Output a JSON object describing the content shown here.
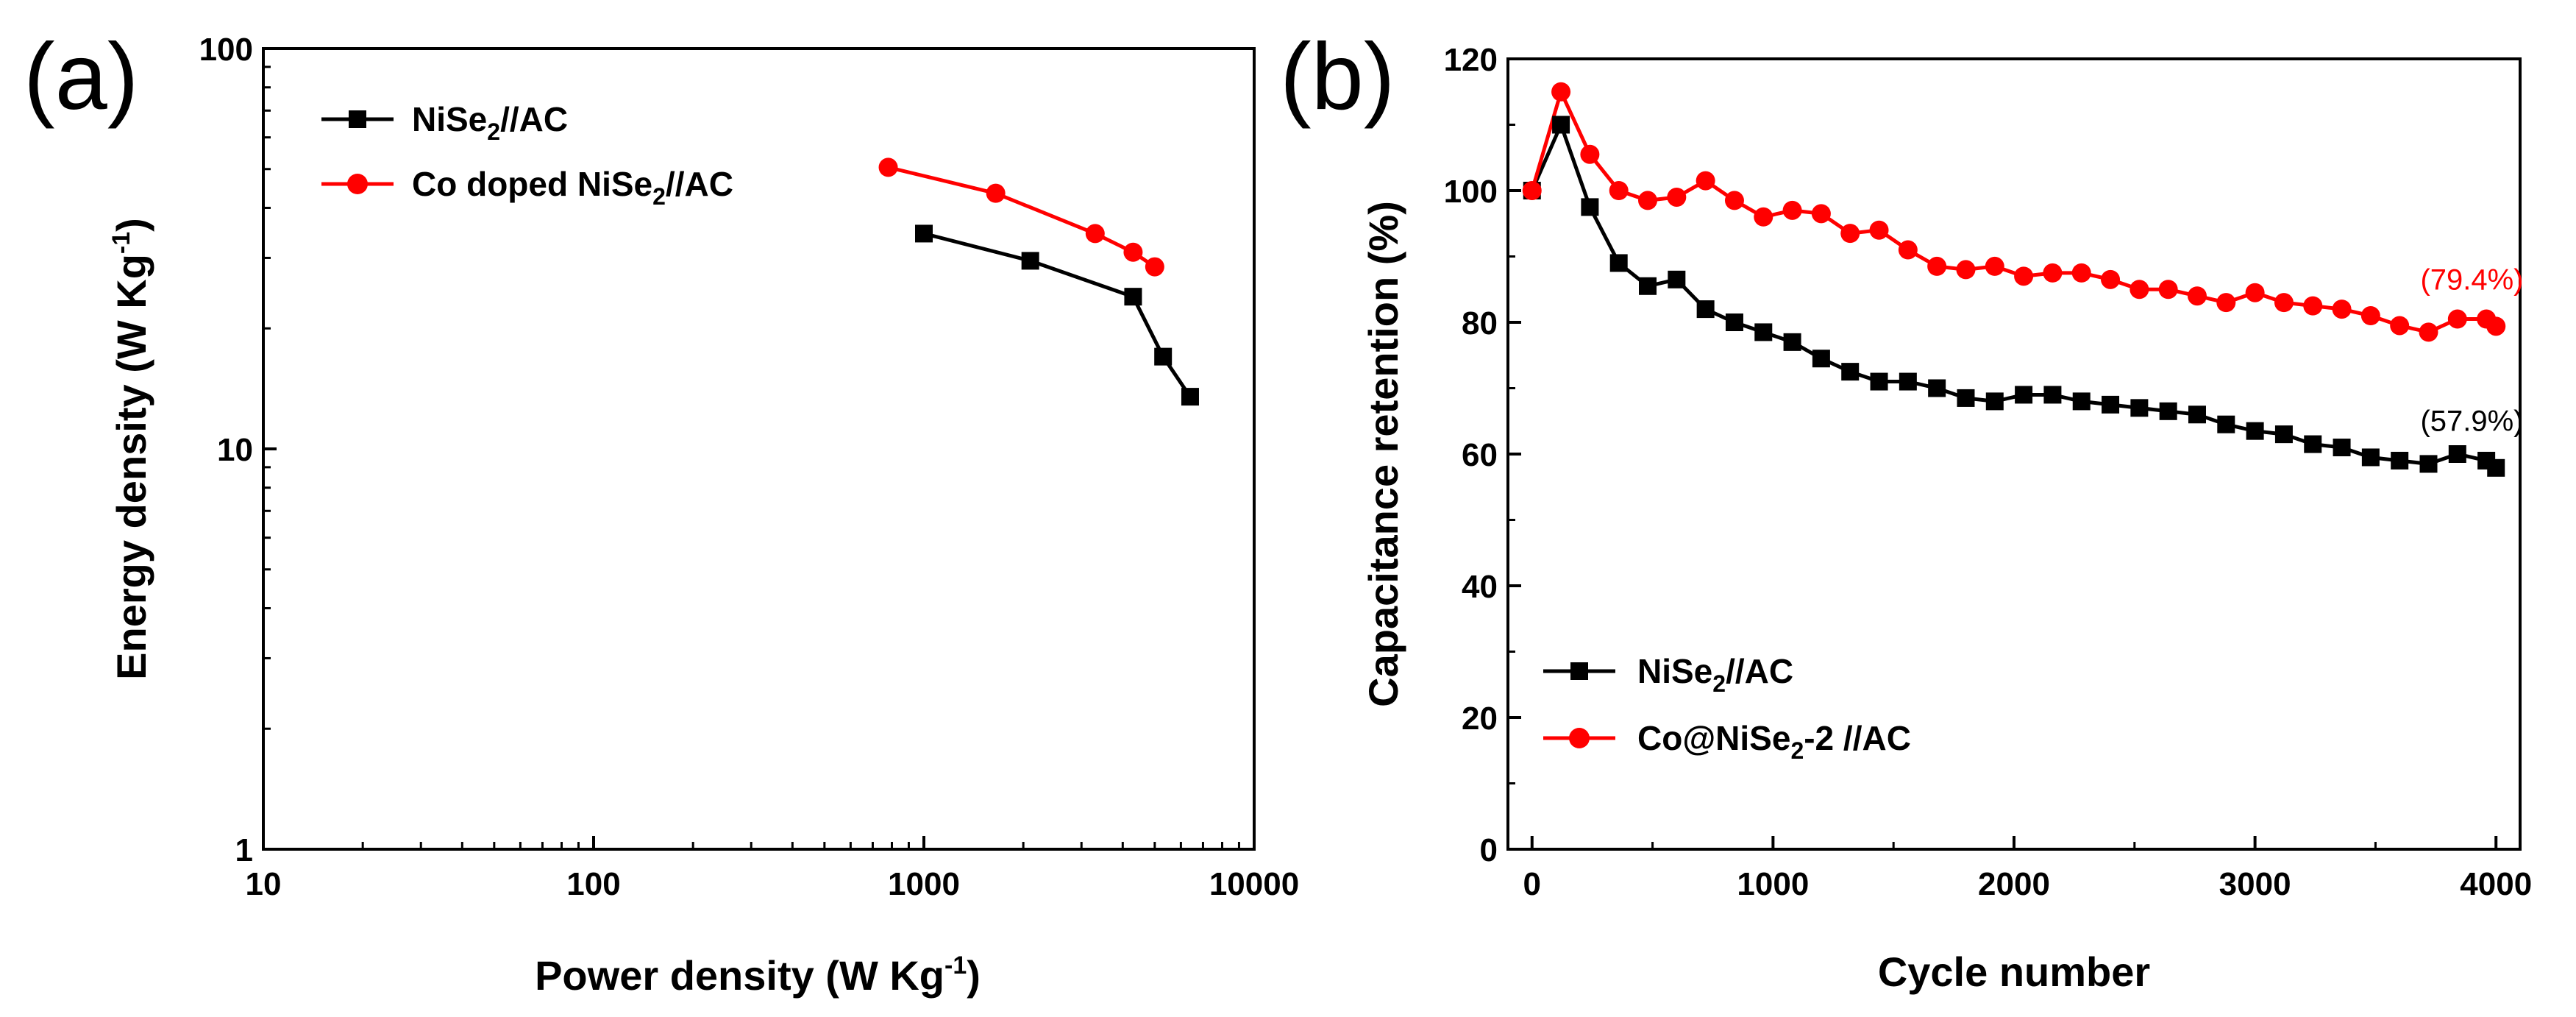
{
  "chart_data": [
    {
      "panel": "(a)",
      "type": "line",
      "xscale": "log",
      "yscale": "log",
      "xlim": [
        10,
        10000
      ],
      "ylim": [
        1,
        100
      ],
      "xticks": [
        "10",
        "100",
        "1000",
        "10000"
      ],
      "yticks": [
        "1",
        "10",
        "100"
      ],
      "xlabel": "Power density (W Kg",
      "xlabel_sup": "-1",
      "xlabel_end": ")",
      "ylabel": "Energy density (W Kg",
      "ylabel_sup": "-1",
      "ylabel_end": ")",
      "legend_position": "top-left",
      "series": [
        {
          "name": "NiSe",
          "name_sub": "2",
          "name_end": "//AC",
          "color": "#000000",
          "marker": "square",
          "x": [
            1000,
            2100,
            4300,
            5300,
            6400
          ],
          "y": [
            34.5,
            29.5,
            24.0,
            17.0,
            13.5
          ]
        },
        {
          "name": "Co doped NiSe",
          "name_sub": "2",
          "name_end": "//AC",
          "color": "#ff0000",
          "marker": "circle",
          "x": [
            780,
            1650,
            3300,
            4300,
            5000
          ],
          "y": [
            50.5,
            43.5,
            34.5,
            31.0,
            28.5
          ]
        }
      ]
    },
    {
      "panel": "(b)",
      "type": "line",
      "xlim": [
        -100,
        4100
      ],
      "ylim": [
        0,
        120
      ],
      "xticks": [
        0,
        1000,
        2000,
        3000,
        4000
      ],
      "yticks": [
        0,
        20,
        40,
        60,
        80,
        100,
        120
      ],
      "xlabel": "Cycle number",
      "ylabel": "Capacitance retention (%)",
      "legend_position": "bottom-left",
      "annotations": [
        {
          "text": "(79.4%)",
          "x": 3900,
          "y": 85,
          "color": "#ff0000"
        },
        {
          "text": "(57.9%)",
          "x": 3900,
          "y": 63.5,
          "color": "#000000"
        }
      ],
      "series": [
        {
          "name": "NiSe",
          "name_sub": "2",
          "name_end": "//AC",
          "color": "#000000",
          "marker": "square",
          "x": [
            0,
            120,
            240,
            360,
            480,
            600,
            720,
            840,
            960,
            1080,
            1200,
            1320,
            1440,
            1560,
            1680,
            1800,
            1920,
            2040,
            2160,
            2280,
            2400,
            2520,
            2640,
            2760,
            2880,
            3000,
            3120,
            3240,
            3360,
            3480,
            3600,
            3720,
            3840,
            3960,
            4000
          ],
          "y": [
            100,
            110,
            97.5,
            89,
            85.5,
            86.5,
            82,
            80,
            78.5,
            77,
            74.5,
            72.5,
            71,
            71,
            70,
            68.5,
            68,
            69,
            69,
            68,
            67.5,
            67,
            66.5,
            66,
            64.5,
            63.5,
            63,
            61.5,
            61,
            59.5,
            59,
            58.5,
            60,
            59,
            57.9
          ]
        },
        {
          "name": "Co@NiSe",
          "name_sub": "2",
          "name_end": "-2 //AC",
          "color": "#ff0000",
          "marker": "circle",
          "x": [
            0,
            120,
            240,
            360,
            480,
            600,
            720,
            840,
            960,
            1080,
            1200,
            1320,
            1440,
            1560,
            1680,
            1800,
            1920,
            2040,
            2160,
            2280,
            2400,
            2520,
            2640,
            2760,
            2880,
            3000,
            3120,
            3240,
            3360,
            3480,
            3600,
            3720,
            3840,
            3960,
            4000
          ],
          "y": [
            100,
            115,
            105.5,
            100,
            98.5,
            99,
            101.5,
            98.5,
            96,
            97,
            96.5,
            93.5,
            94,
            91,
            88.5,
            88,
            88.5,
            87,
            87.5,
            87.5,
            86.5,
            85,
            85,
            84,
            83,
            84.5,
            83,
            82.5,
            82,
            81,
            79.5,
            78.5,
            80.5,
            80.5,
            79.4
          ]
        }
      ]
    }
  ]
}
